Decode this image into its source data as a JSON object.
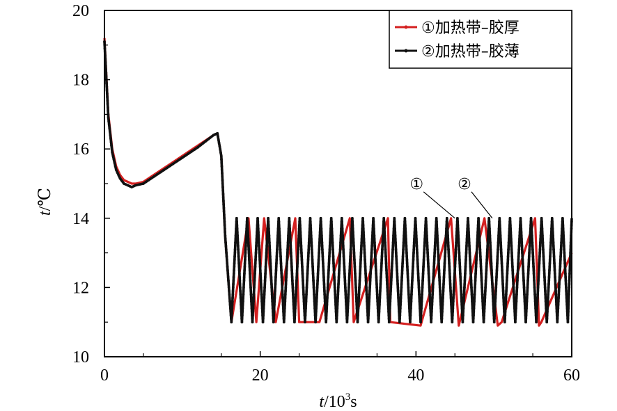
{
  "chart_data": {
    "type": "line",
    "xlabel_var": "t",
    "xlabel_unit": "/10",
    "xlabel_sup": "3",
    "xlabel_tail": "s",
    "ylabel_var": "t",
    "ylabel_unit": "/℃",
    "xlim": [
      0,
      60
    ],
    "ylim": [
      10,
      20
    ],
    "x_ticks": [
      0,
      20,
      40,
      60
    ],
    "x_tick_labels": [
      "0",
      "20",
      "40",
      "60"
    ],
    "y_ticks": [
      10,
      12,
      14,
      16,
      18,
      20
    ],
    "y_tick_labels": [
      "10",
      "12",
      "14",
      "16",
      "18",
      "20"
    ],
    "grid": false,
    "legend_position": "top-right",
    "series": [
      {
        "name": "①加热带–胶厚",
        "color": "#d42020",
        "x": [
          0,
          0.5,
          1,
          1.5,
          2,
          2.5,
          3,
          3.5,
          4,
          5,
          6,
          8,
          10,
          12,
          14,
          14.5,
          15,
          15.5,
          16.3,
          18.5,
          19.5,
          20.5,
          22,
          24.5,
          25,
          27.6,
          31.5,
          32,
          36.4,
          36.7,
          40.6,
          44.5,
          45.5,
          48.8,
          50.5,
          51,
          55.3,
          55.8,
          56.1,
          60
        ],
        "y": [
          19.2,
          17.0,
          16.0,
          15.5,
          15.25,
          15.1,
          15.05,
          15.0,
          15.0,
          15.05,
          15.2,
          15.5,
          15.8,
          16.1,
          16.4,
          16.45,
          15.8,
          13.5,
          11.0,
          14.0,
          11.0,
          14.0,
          11.0,
          14.0,
          11.0,
          11.0,
          14.0,
          11.0,
          14.0,
          11.0,
          10.9,
          14.0,
          10.9,
          14.0,
          10.9,
          11.0,
          14.0,
          10.9,
          11.0,
          13.0
        ]
      },
      {
        "name": "②加热带–胶薄",
        "color": "#111111",
        "period": 1.35,
        "low": 11.0,
        "high": 14.0,
        "x": [
          0,
          0.5,
          1,
          1.5,
          2,
          2.5,
          3,
          3.5,
          4,
          5,
          6,
          8,
          10,
          12,
          14,
          14.5,
          15,
          15.5,
          16.3
        ],
        "y": [
          19.1,
          16.9,
          15.9,
          15.4,
          15.15,
          15.0,
          14.95,
          14.9,
          14.95,
          15.0,
          15.15,
          15.45,
          15.75,
          16.05,
          16.4,
          16.45,
          15.8,
          13.5,
          11.0
        ]
      }
    ],
    "annotations": [
      {
        "label": "①",
        "x": 45.0,
        "y": 14.0
      },
      {
        "label": "②",
        "x": 49.8,
        "y": 14.0
      }
    ]
  }
}
